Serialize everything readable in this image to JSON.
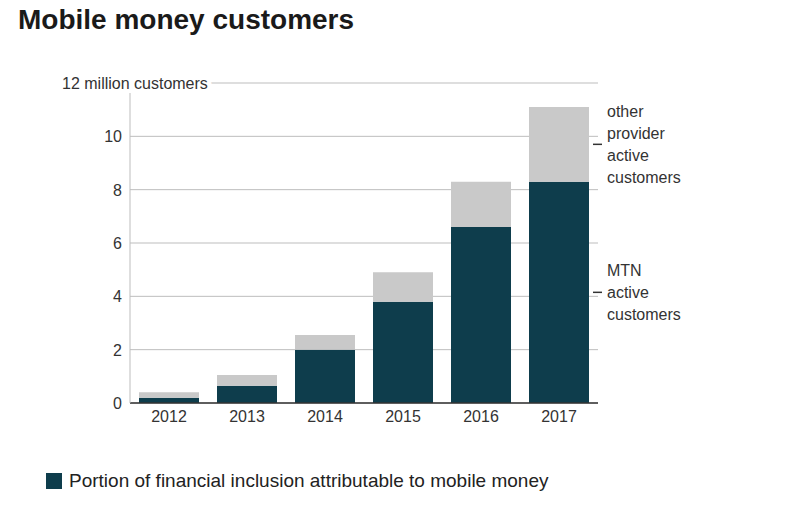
{
  "chart_data": {
    "type": "bar",
    "title": "Mobile money customers",
    "categories": [
      "2012",
      "2013",
      "2014",
      "2015",
      "2016",
      "2017"
    ],
    "series": [
      {
        "name": "MTN active customers",
        "color": "#0e3d4c",
        "values": [
          0.2,
          0.65,
          2.0,
          3.8,
          6.6,
          8.3
        ]
      },
      {
        "name": "other provider active customers",
        "color": "#c9c9c9",
        "values": [
          0.2,
          0.4,
          0.55,
          1.1,
          1.7,
          2.8
        ]
      }
    ],
    "ylim": [
      0,
      12
    ],
    "yticks": [
      0,
      2,
      4,
      6,
      8,
      10,
      {
        "value": 12,
        "label": "12 million customers"
      }
    ],
    "stacked": true,
    "grid": true,
    "legend": "right",
    "annotation": "Portion of financial inclusion attributable to mobile money"
  }
}
